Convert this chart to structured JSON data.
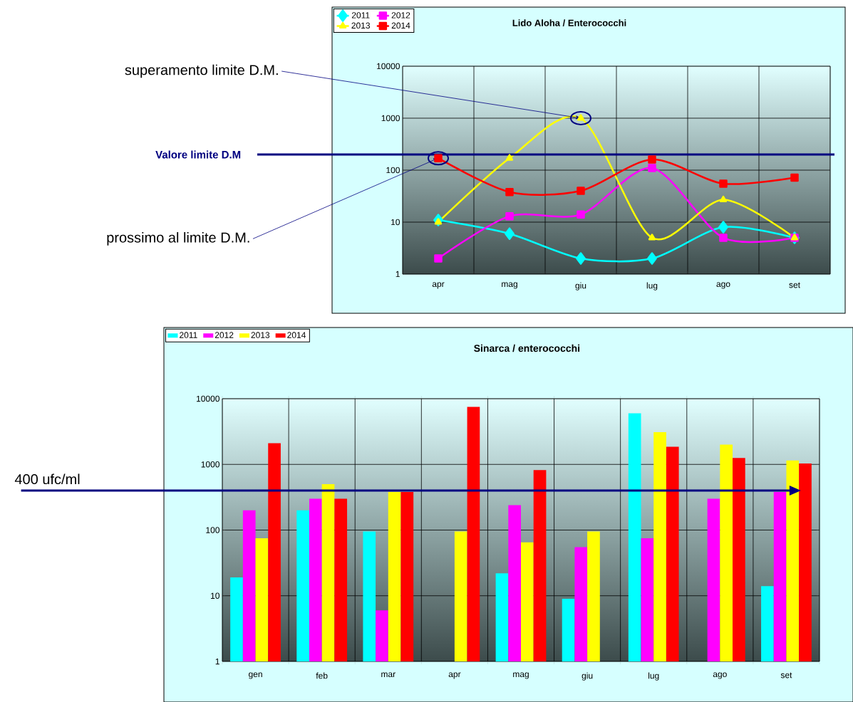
{
  "chart_data": [
    {
      "type": "line",
      "title": "Lido Aloha / Enterococchi",
      "categories": [
        "apr",
        "mag",
        "giu",
        "lug",
        "ago",
        "set"
      ],
      "series": [
        {
          "name": "2011",
          "color": "#00ffff",
          "marker": "diamond",
          "values": [
            11,
            6,
            2,
            2,
            8,
            5
          ]
        },
        {
          "name": "2012",
          "color": "#ff00ff",
          "marker": "square",
          "values": [
            2,
            13,
            14,
            110,
            5,
            5
          ]
        },
        {
          "name": "2013",
          "color": "#ffff00",
          "marker": "triangle",
          "values": [
            10,
            170,
            1000,
            5,
            27,
            5
          ]
        },
        {
          "name": "2014",
          "color": "#ff0000",
          "marker": "square",
          "values": [
            170,
            38,
            40,
            160,
            55,
            72
          ]
        }
      ],
      "log": "y",
      "ylim": [
        1,
        10000
      ],
      "yticks": [
        1,
        10,
        100,
        1000,
        10000
      ],
      "grid": true,
      "legend": "top left",
      "ref_lines": [
        {
          "axis": "y",
          "value": 200,
          "label": "Valore limite D.M",
          "color": "#000080"
        }
      ],
      "annotations": [
        {
          "text": "superamento limite D.M.",
          "x": "giu",
          "y": 1000
        },
        {
          "text": "prossimo al limite D.M.",
          "x": "apr",
          "y": 170
        }
      ]
    },
    {
      "type": "bar",
      "title": "Sinarca / enterococchi",
      "categories": [
        "gen",
        "feb",
        "mar",
        "apr",
        "mag",
        "giu",
        "lug",
        "ago",
        "set"
      ],
      "series": [
        {
          "name": "2011",
          "color": "#00ffff",
          "values": [
            19,
            200,
            95,
            null,
            22,
            9,
            6000,
            null,
            14
          ]
        },
        {
          "name": "2012",
          "color": "#ff00ff",
          "values": [
            200,
            300,
            6,
            null,
            240,
            55,
            75,
            300,
            380
          ]
        },
        {
          "name": "2013",
          "color": "#ffff00",
          "values": [
            75,
            500,
            380,
            95,
            65,
            95,
            3100,
            2000,
            1150
          ]
        },
        {
          "name": "2014",
          "color": "#ff0000",
          "values": [
            2100,
            300,
            380,
            7500,
            820,
            null,
            1850,
            1250,
            1030
          ]
        }
      ],
      "log": "y",
      "ylim": [
        1,
        10000
      ],
      "yticks": [
        1,
        10,
        100,
        1000,
        10000
      ],
      "grid": true,
      "legend": "top left",
      "ref_lines": [
        {
          "axis": "y",
          "value": 400,
          "label": "400 ufc/ml",
          "color": "#000080"
        }
      ]
    }
  ]
}
